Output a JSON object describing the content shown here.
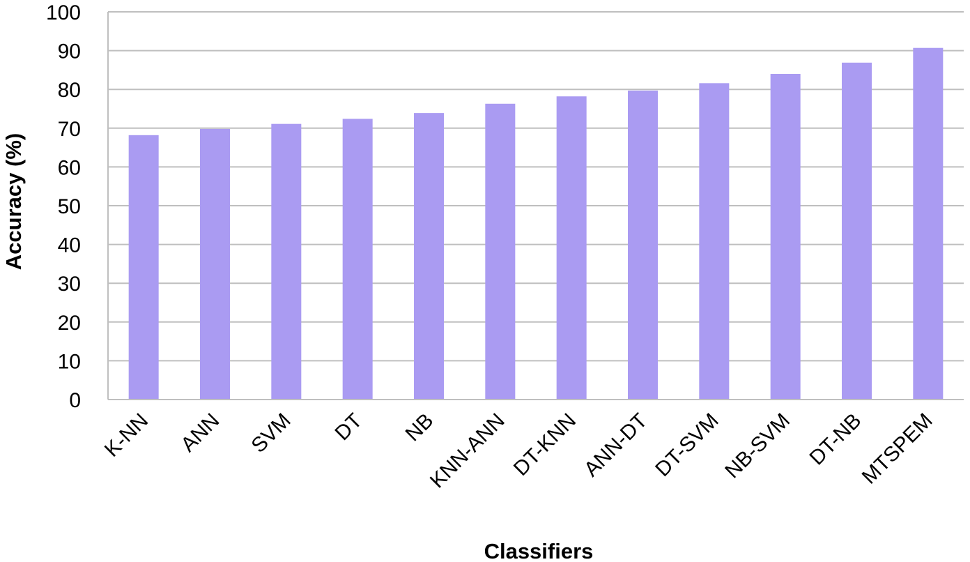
{
  "chart_data": {
    "type": "bar",
    "title": "",
    "xlabel": "Classifiers",
    "ylabel": "Accuracy (%)",
    "categories": [
      "K-NN",
      "ANN",
      "SVM",
      "DT",
      "NB",
      "KNN-ANN",
      "DT-KNN",
      "ANN-DT",
      "DT-SVM",
      "NB-SVM",
      "DT-NB",
      "MTSPEM"
    ],
    "values": [
      68.2,
      69.8,
      71.1,
      72.4,
      73.9,
      76.3,
      78.2,
      79.7,
      81.6,
      84.0,
      86.9,
      90.7
    ],
    "ylim": [
      0,
      100
    ],
    "yticks": [
      0,
      10,
      20,
      30,
      40,
      50,
      60,
      70,
      80,
      90,
      100
    ],
    "grid": true,
    "legend": "none",
    "bar_color": "#AA9BF2",
    "grid_color": "#BFBFBF"
  }
}
